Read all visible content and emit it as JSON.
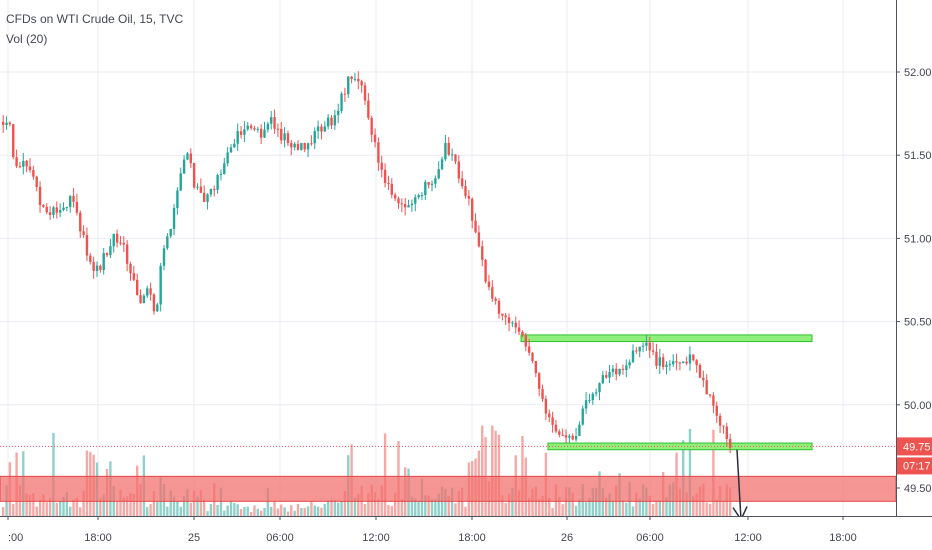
{
  "legend": {
    "title": "CFDs on WTI Crude Oil, 15, TVC",
    "indicator": "Vol (20)"
  },
  "colors": {
    "up": "#26a69a",
    "down": "#ef5350",
    "vol_up": "#8fd0c9",
    "vol_down": "#f4a9a7",
    "grid": "#e9ecf2",
    "axis_text": "#434651",
    "price_line": "#ef5350",
    "zone_green": "#8ef07a",
    "zone_green_border": "#2fbf2f",
    "zone_red": "#f26d6b"
  },
  "chart_data": {
    "type": "candlestick",
    "y_axis": {
      "min": 49.3,
      "max": 52.15,
      "ticks": [
        "52.00",
        "51.50",
        "51.00",
        "50.50",
        "50.00",
        "49.50"
      ]
    },
    "x_axis": {
      "ticks": [
        ":00",
        "18:00",
        "25",
        "06:00",
        "12:00",
        "18:00",
        "26",
        "06:00",
        "12:00",
        "18:00"
      ]
    },
    "last_price": "49.75",
    "countdown": "07:17",
    "price_path": [
      [
        0,
        51.7
      ],
      [
        8,
        51.74
      ],
      [
        12,
        51.5
      ],
      [
        18,
        51.42
      ],
      [
        28,
        51.45
      ],
      [
        40,
        51.2
      ],
      [
        55,
        51.15
      ],
      [
        70,
        51.25
      ],
      [
        80,
        51.05
      ],
      [
        92,
        50.8
      ],
      [
        100,
        50.85
      ],
      [
        112,
        51.0
      ],
      [
        122,
        50.95
      ],
      [
        132,
        50.75
      ],
      [
        140,
        50.6
      ],
      [
        148,
        50.7
      ],
      [
        155,
        50.5
      ],
      [
        160,
        50.85
      ],
      [
        170,
        51.1
      ],
      [
        178,
        51.35
      ],
      [
        186,
        51.55
      ],
      [
        194,
        51.3
      ],
      [
        202,
        51.22
      ],
      [
        212,
        51.28
      ],
      [
        222,
        51.45
      ],
      [
        235,
        51.62
      ],
      [
        245,
        51.68
      ],
      [
        258,
        51.62
      ],
      [
        268,
        51.72
      ],
      [
        280,
        51.62
      ],
      [
        290,
        51.58
      ],
      [
        300,
        51.55
      ],
      [
        312,
        51.6
      ],
      [
        322,
        51.68
      ],
      [
        334,
        51.72
      ],
      [
        342,
        51.88
      ],
      [
        350,
        51.98
      ],
      [
        360,
        51.9
      ],
      [
        368,
        51.72
      ],
      [
        376,
        51.5
      ],
      [
        384,
        51.32
      ],
      [
        394,
        51.25
      ],
      [
        404,
        51.18
      ],
      [
        414,
        51.22
      ],
      [
        424,
        51.32
      ],
      [
        434,
        51.38
      ],
      [
        444,
        51.55
      ],
      [
        452,
        51.5
      ],
      [
        460,
        51.35
      ],
      [
        468,
        51.22
      ],
      [
        476,
        51.0
      ],
      [
        484,
        50.75
      ],
      [
        494,
        50.6
      ],
      [
        504,
        50.52
      ],
      [
        514,
        50.48
      ],
      [
        522,
        50.42
      ],
      [
        530,
        50.3
      ],
      [
        538,
        50.1
      ],
      [
        546,
        49.95
      ],
      [
        556,
        49.85
      ],
      [
        566,
        49.8
      ],
      [
        576,
        49.84
      ],
      [
        584,
        50.0
      ],
      [
        594,
        50.1
      ],
      [
        604,
        50.18
      ],
      [
        614,
        50.2
      ],
      [
        624,
        50.24
      ],
      [
        632,
        50.3
      ],
      [
        640,
        50.36
      ],
      [
        648,
        50.34
      ],
      [
        656,
        50.26
      ],
      [
        666,
        50.24
      ],
      [
        676,
        50.22
      ],
      [
        684,
        50.28
      ],
      [
        692,
        50.27
      ],
      [
        700,
        50.18
      ],
      [
        708,
        50.05
      ],
      [
        716,
        49.95
      ],
      [
        724,
        49.82
      ],
      [
        730,
        49.76
      ]
    ],
    "annotations": [
      {
        "type": "horizontal_zone",
        "color": "green",
        "from_price": 50.38,
        "to_price": 50.42,
        "x_start": 521,
        "x_end": 812
      },
      {
        "type": "horizontal_zone",
        "color": "green",
        "from_price": 49.73,
        "to_price": 49.77,
        "x_start": 548,
        "x_end": 812
      },
      {
        "type": "horizontal_zone",
        "color": "red",
        "from_price": 49.42,
        "to_price": 49.57,
        "x_start": 0,
        "x_end": 896
      },
      {
        "type": "arrow",
        "from_x": 737,
        "from_price": 49.73,
        "to_x": 741,
        "to_price": 49.31
      }
    ]
  }
}
